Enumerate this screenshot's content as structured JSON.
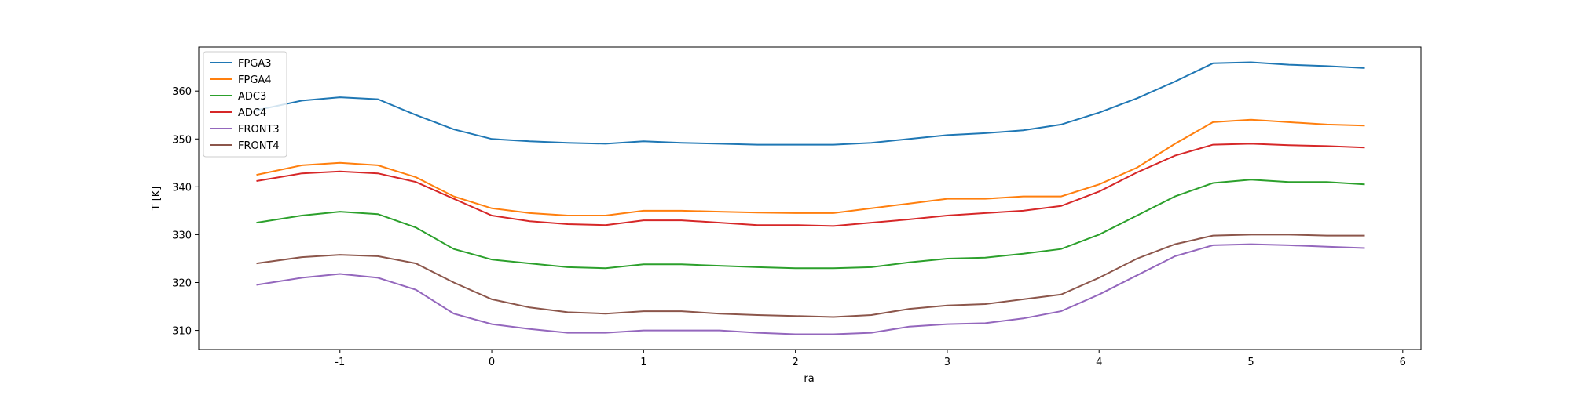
{
  "chart_data": {
    "type": "line",
    "x_label": "ra",
    "y_label": "T [K]",
    "x": [
      -1.55,
      -1.25,
      -1.0,
      -0.75,
      -0.5,
      -0.25,
      0,
      0.25,
      0.5,
      0.75,
      1.0,
      1.25,
      1.5,
      1.75,
      2.0,
      2.25,
      2.5,
      2.75,
      3.0,
      3.25,
      3.5,
      3.75,
      4.0,
      4.25,
      4.5,
      4.75,
      5.0,
      5.25,
      5.5,
      5.75
    ],
    "series": [
      {
        "name": "FPGA3",
        "color": "#1f77b4",
        "values": [
          356,
          358,
          358.7,
          358.3,
          355,
          352,
          350,
          349.5,
          349.2,
          349,
          349.5,
          349.2,
          349,
          348.8,
          348.8,
          348.8,
          349.2,
          350,
          350.8,
          351.2,
          351.8,
          353,
          355.5,
          358.5,
          362,
          365.8,
          366,
          365.5,
          365.2,
          364.8
        ]
      },
      {
        "name": "FPGA4",
        "color": "#ff7f0e",
        "values": [
          342.5,
          344.5,
          345,
          344.5,
          342,
          338,
          335.5,
          334.5,
          334,
          334,
          335,
          335,
          334.8,
          334.6,
          334.5,
          334.5,
          335.5,
          336.5,
          337.5,
          337.5,
          338,
          338,
          340.5,
          344,
          349,
          353.5,
          354,
          353.5,
          353,
          352.8
        ]
      },
      {
        "name": "ADC3",
        "color": "#2ca02c",
        "values": [
          332.5,
          334,
          334.8,
          334.3,
          331.5,
          327,
          324.8,
          324,
          323.2,
          323,
          323.8,
          323.8,
          323.5,
          323.2,
          323,
          323,
          323.2,
          324.2,
          325,
          325.2,
          326,
          327,
          330,
          334,
          338,
          340.8,
          341.5,
          341,
          341,
          340.5
        ]
      },
      {
        "name": "ADC4",
        "color": "#d62728",
        "values": [
          341.2,
          342.8,
          343.2,
          342.8,
          341,
          337.5,
          334,
          332.8,
          332.2,
          332,
          333,
          333,
          332.5,
          332,
          332,
          331.8,
          332.5,
          333.2,
          334,
          334.5,
          335,
          336,
          339,
          343,
          346.5,
          348.8,
          349,
          348.7,
          348.5,
          348.2
        ]
      },
      {
        "name": "FRONT3",
        "color": "#9467bd",
        "values": [
          319.5,
          321,
          321.8,
          321,
          318.5,
          313.5,
          311.3,
          310.3,
          309.5,
          309.5,
          310,
          310,
          310,
          309.5,
          309.2,
          309.2,
          309.5,
          310.8,
          311.3,
          311.5,
          312.5,
          314,
          317.5,
          321.5,
          325.5,
          327.8,
          328,
          327.8,
          327.5,
          327.2
        ]
      },
      {
        "name": "FRONT4",
        "color": "#8c564b",
        "values": [
          324,
          325.3,
          325.8,
          325.5,
          324,
          320,
          316.5,
          314.8,
          313.8,
          313.5,
          314,
          314,
          313.5,
          313.2,
          313,
          312.8,
          313.2,
          314.5,
          315.2,
          315.5,
          316.5,
          317.5,
          321,
          325,
          328,
          329.8,
          330,
          330,
          329.8,
          329.8
        ]
      }
    ],
    "xlim": [
      -1.93,
      6.12
    ],
    "xticks": [
      -1,
      0,
      1,
      2,
      3,
      4,
      5,
      6
    ],
    "ylim": [
      306,
      369.2
    ],
    "yticks": [
      310,
      320,
      330,
      340,
      350,
      360
    ],
    "legend": "upper left"
  }
}
